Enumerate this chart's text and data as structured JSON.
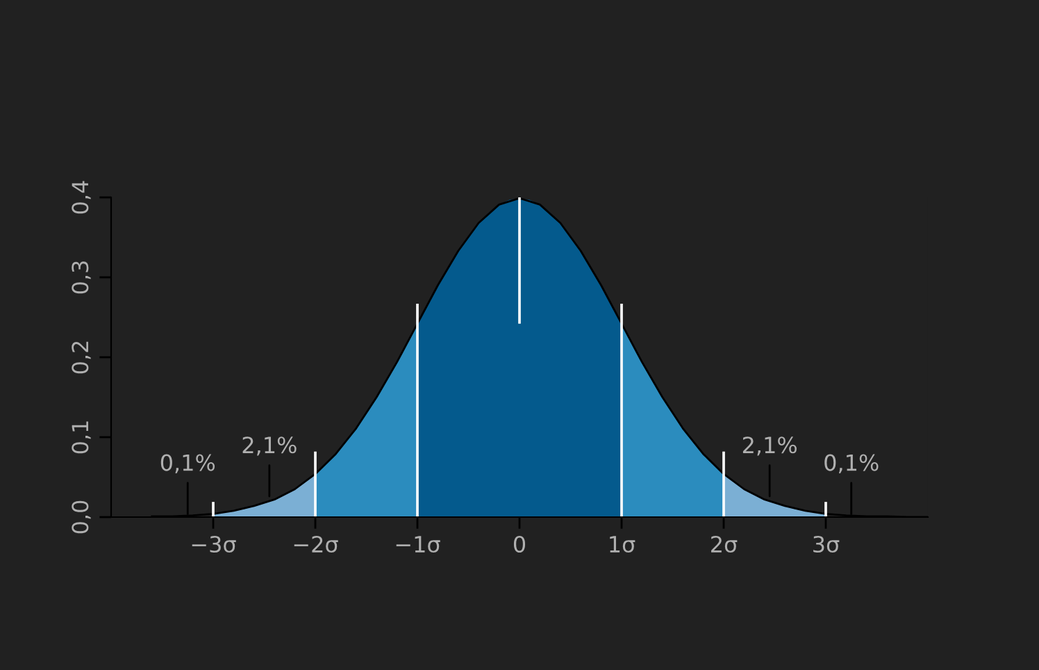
{
  "chart_data": {
    "type": "area",
    "xlim": [
      -4,
      4
    ],
    "ylim": [
      0,
      0.4
    ],
    "xticks": [
      {
        "value": -3,
        "label": "−3σ"
      },
      {
        "value": -2,
        "label": "−2σ"
      },
      {
        "value": -1,
        "label": "−1σ"
      },
      {
        "value": 0,
        "label": "0"
      },
      {
        "value": 1,
        "label": "1σ"
      },
      {
        "value": 2,
        "label": "2σ"
      },
      {
        "value": 3,
        "label": "3σ"
      }
    ],
    "yticks": [
      {
        "value": 0,
        "label": "0,0"
      },
      {
        "value": 0.1,
        "label": "0,1"
      },
      {
        "value": 0.2,
        "label": "0,2"
      },
      {
        "value": 0.3,
        "label": "0,3"
      },
      {
        "value": 0.4,
        "label": "0,4"
      }
    ],
    "grid": false,
    "legend": false,
    "series": [
      {
        "color": "#7bafd4",
        "x": [
          -3,
          -2.9,
          -2.8,
          -2.7,
          -2.6,
          -2.5,
          -2.4,
          -2.3,
          -2.2,
          -2.1,
          -2
        ],
        "values": [
          0.004,
          0.006,
          0.008,
          0.01,
          0.014,
          0.018,
          0.022,
          0.028,
          0.035,
          0.044,
          0.054
        ]
      },
      {
        "color": "#2b8cbe",
        "x": [
          -2,
          -1.9,
          -1.8,
          -1.7,
          -1.6,
          -1.5,
          -1.4,
          -1.3,
          -1.2,
          -1.1,
          -1
        ],
        "values": [
          0.054,
          0.066,
          0.079,
          0.094,
          0.111,
          0.13,
          0.15,
          0.171,
          0.194,
          0.218,
          0.242
        ]
      },
      {
        "color": "#045a8d",
        "x": [
          -1,
          -0.9,
          -0.8,
          -0.7,
          -0.6,
          -0.5,
          -0.4,
          -0.3,
          -0.2,
          -0.1,
          0,
          0.1,
          0.2,
          0.3,
          0.4,
          0.5,
          0.6,
          0.7,
          0.8,
          0.9,
          1
        ],
        "values": [
          0.242,
          0.266,
          0.29,
          0.312,
          0.333,
          0.352,
          0.368,
          0.381,
          0.391,
          0.397,
          0.399,
          0.397,
          0.391,
          0.381,
          0.368,
          0.352,
          0.333,
          0.312,
          0.29,
          0.266,
          0.242
        ]
      },
      {
        "color": "#2b8cbe",
        "x": [
          1,
          1.1,
          1.2,
          1.3,
          1.4,
          1.5,
          1.6,
          1.7,
          1.8,
          1.9,
          2
        ],
        "values": [
          0.242,
          0.218,
          0.194,
          0.171,
          0.15,
          0.13,
          0.111,
          0.094,
          0.079,
          0.066,
          0.054
        ]
      },
      {
        "color": "#7bafd4",
        "x": [
          2,
          2.1,
          2.2,
          2.3,
          2.4,
          2.5,
          2.6,
          2.7,
          2.8,
          2.9,
          3
        ],
        "values": [
          0.054,
          0.044,
          0.035,
          0.028,
          0.022,
          0.018,
          0.014,
          0.01,
          0.008,
          0.006,
          0.004
        ]
      },
      {
        "type": "line",
        "color": "#000000",
        "x": [
          -3.6,
          -3.4,
          -3.2,
          -3,
          -2.8,
          -2.6,
          -2.4,
          -2.2,
          -2,
          -1.8,
          -1.6,
          -1.4,
          -1.2,
          -1,
          -0.8,
          -0.6,
          -0.4,
          -0.2,
          0,
          0.2,
          0.4,
          0.6,
          0.8,
          1,
          1.2,
          1.4,
          1.6,
          1.8,
          2,
          2.2,
          2.4,
          2.6,
          2.8,
          3,
          3.2,
          3.4,
          3.6,
          3.8,
          4
        ],
        "values": [
          0.001,
          0.001,
          0.002,
          0.004,
          0.008,
          0.014,
          0.022,
          0.035,
          0.054,
          0.079,
          0.111,
          0.15,
          0.194,
          0.242,
          0.29,
          0.333,
          0.368,
          0.391,
          0.399,
          0.391,
          0.368,
          0.333,
          0.29,
          0.242,
          0.194,
          0.15,
          0.111,
          0.079,
          0.054,
          0.035,
          0.022,
          0.014,
          0.008,
          0.004,
          0.002,
          0.001,
          0.001,
          0.0,
          0.0
        ]
      },
      {
        "type": "bar",
        "color": "#ffffff",
        "x": [
          -3,
          -2,
          -1,
          0,
          1,
          2,
          3
        ],
        "base": [
          0,
          0,
          0,
          0.242,
          0,
          0,
          0
        ],
        "values": [
          0.019,
          0.082,
          0.267,
          0.158,
          0.267,
          0.082,
          0.019
        ]
      }
    ],
    "annotations": [
      {
        "text": "0,1%",
        "x": -3.25,
        "y": 0.004
      },
      {
        "text": "2,1%",
        "x": -2.45,
        "y": 0.026
      },
      {
        "text": "2,1%",
        "x": 2.45,
        "y": 0.026
      },
      {
        "text": "0,1%",
        "x": 3.25,
        "y": 0.004
      }
    ]
  }
}
